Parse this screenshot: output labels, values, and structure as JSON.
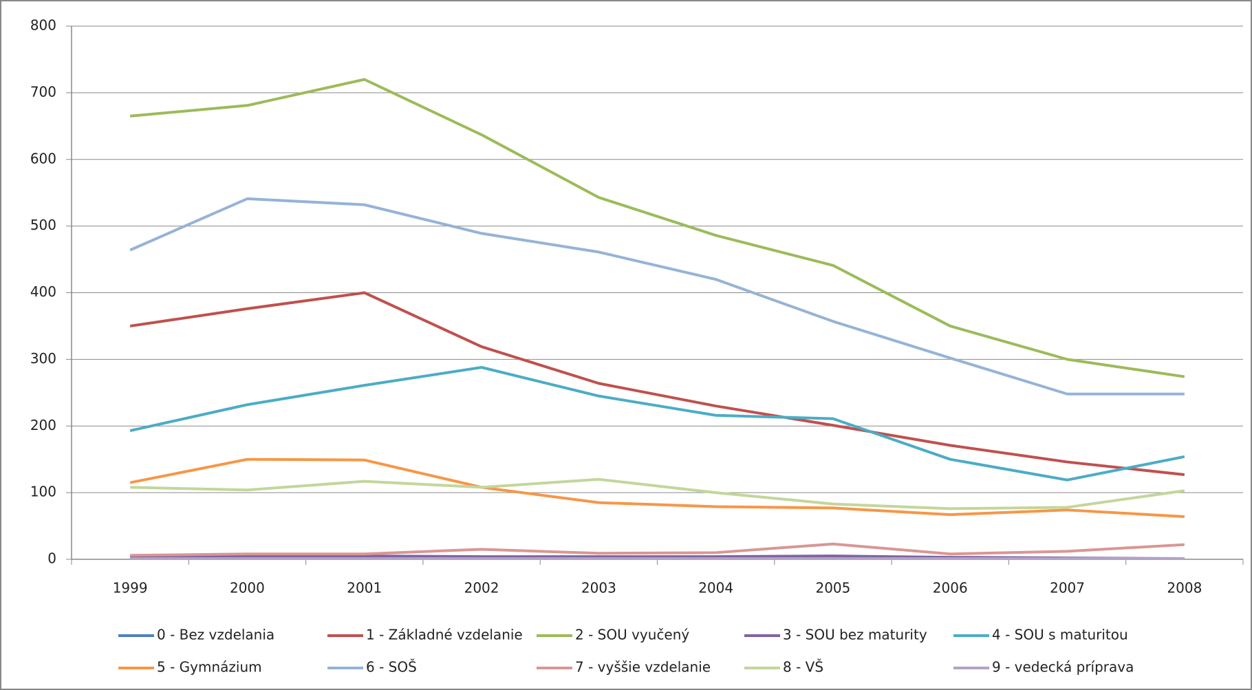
{
  "chart_data": {
    "type": "line",
    "categories": [
      "1999",
      "2000",
      "2001",
      "2002",
      "2003",
      "2004",
      "2005",
      "2006",
      "2007",
      "2008"
    ],
    "series": [
      {
        "name": "0 - Bez vzdelania",
        "color": "#4F81BD",
        "values": [
          2,
          2,
          2,
          2,
          2,
          2,
          2,
          1,
          1,
          1
        ]
      },
      {
        "name": "1 - Základné vzdelanie",
        "color": "#C0504D",
        "values": [
          350,
          376,
          400,
          319,
          264,
          230,
          201,
          171,
          146,
          127
        ]
      },
      {
        "name": "2 - SOU vyučený",
        "color": "#9BBB59",
        "values": [
          665,
          681,
          720,
          637,
          543,
          486,
          441,
          350,
          300,
          274
        ]
      },
      {
        "name": "3 - SOU bez maturity",
        "color": "#8064A2",
        "values": [
          4,
          5,
          5,
          4,
          4,
          4,
          5,
          3,
          2,
          1
        ]
      },
      {
        "name": "4 - SOU s maturitou",
        "color": "#4BACC6",
        "values": [
          193,
          232,
          261,
          288,
          245,
          216,
          211,
          150,
          119,
          154
        ]
      },
      {
        "name": "5 - Gymnázium",
        "color": "#F79646",
        "values": [
          115,
          150,
          149,
          108,
          85,
          79,
          77,
          67,
          74,
          64
        ]
      },
      {
        "name": "6 - SOŠ",
        "color": "#95B3D7",
        "values": [
          464,
          541,
          532,
          489,
          461,
          420,
          357,
          302,
          248,
          248
        ]
      },
      {
        "name": "7 - vyššie vzdelanie",
        "color": "#D99694",
        "values": [
          6,
          8,
          8,
          15,
          9,
          10,
          23,
          8,
          12,
          22
        ]
      },
      {
        "name": "8 - VŠ",
        "color": "#C3D69B",
        "values": [
          108,
          104,
          117,
          108,
          120,
          100,
          83,
          76,
          78,
          103
        ]
      },
      {
        "name": "9 - vedecká príprava",
        "color": "#B2A2C7",
        "values": [
          1,
          1,
          1,
          1,
          1,
          1,
          1,
          1,
          1,
          1
        ]
      }
    ],
    "ylim": [
      0,
      800
    ],
    "yticks": [
      0,
      100,
      200,
      300,
      400,
      500,
      600,
      700,
      800
    ],
    "grid": true,
    "legend": "bottom"
  }
}
